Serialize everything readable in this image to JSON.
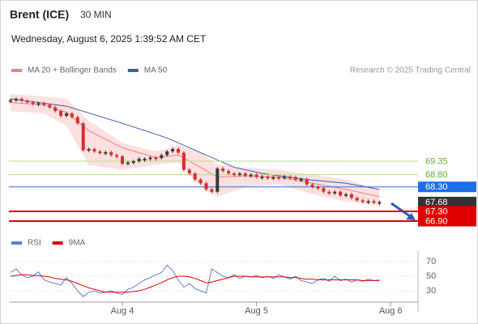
{
  "header": {
    "title": "Brent (ICE)",
    "interval": "30 MIN",
    "timestamp": "Wednesday, August 6, 2025 1:39:52 AM CET",
    "credit": "Research © 2025 Trading Central"
  },
  "chart_data": [
    {
      "type": "candlestick",
      "x": [
        -20,
        -19,
        -18,
        -17,
        -16,
        -15,
        -14,
        -13,
        -12,
        -11,
        -10,
        -9,
        -8,
        -7,
        -6,
        -5,
        -4,
        -3,
        -2,
        -1,
        0,
        1,
        2,
        3,
        4,
        5,
        6,
        7,
        8,
        9,
        10,
        11,
        12,
        13,
        14,
        15,
        16,
        17,
        18,
        19,
        20,
        21,
        22,
        23,
        24,
        25,
        26,
        27,
        28,
        29,
        30,
        31,
        32,
        33,
        34,
        35,
        36,
        37,
        38,
        39,
        40,
        41,
        42,
        43,
        44,
        45,
        46
      ],
      "close": [
        71.85,
        71.9,
        71.82,
        71.75,
        71.7,
        71.72,
        71.65,
        71.55,
        71.4,
        71.2,
        71.3,
        71.15,
        70.9,
        69.8,
        69.85,
        69.75,
        69.7,
        69.72,
        69.6,
        69.55,
        69.25,
        69.3,
        69.35,
        69.45,
        69.45,
        69.5,
        69.48,
        69.6,
        69.75,
        69.85,
        69.7,
        69.0,
        68.85,
        68.6,
        68.45,
        68.2,
        68.1,
        69.05,
        68.95,
        68.85,
        68.8,
        68.85,
        68.75,
        68.8,
        68.7,
        68.72,
        68.68,
        68.7,
        68.65,
        68.72,
        68.7,
        68.6,
        68.62,
        68.4,
        68.3,
        68.25,
        68.1,
        68.05,
        68.1,
        67.95,
        68.0,
        67.85,
        67.75,
        67.7,
        67.72,
        67.65,
        67.68
      ],
      "up_color": "#3a3a3a",
      "down_color": "#d32f2f",
      "overlays": [
        {
          "name": "MA 20 + Bollinger Bands",
          "color": "#f08080",
          "band_color": "#fde0e0",
          "x": [
            -20,
            -14,
            -10,
            -6,
            0,
            6,
            10,
            14,
            17,
            22,
            28,
            34,
            40,
            46
          ],
          "values": [
            71.75,
            71.65,
            71.35,
            70.6,
            69.9,
            69.5,
            69.6,
            69.1,
            68.7,
            68.75,
            68.7,
            68.45,
            68.2,
            67.9
          ],
          "upper": [
            72.1,
            72.0,
            71.9,
            71.0,
            70.1,
            69.75,
            70.0,
            69.7,
            69.2,
            69.1,
            69.0,
            68.8,
            68.6,
            68.2
          ],
          "lower": [
            71.4,
            71.3,
            70.8,
            69.2,
            69.0,
            69.2,
            69.3,
            68.3,
            67.9,
            68.3,
            68.4,
            68.0,
            67.7,
            67.55
          ]
        },
        {
          "name": "MA 50",
          "color": "#3a5da8",
          "x": [
            -20,
            -10,
            0,
            8,
            14,
            20,
            25,
            33,
            40,
            46
          ],
          "values": [
            71.9,
            71.6,
            70.9,
            70.3,
            69.7,
            69.1,
            68.85,
            68.6,
            68.45,
            68.2
          ]
        }
      ],
      "levels": [
        {
          "value": 69.35,
          "color": "#6aa832",
          "line_color": "#b9dc93",
          "box": false,
          "line": true
        },
        {
          "value": {
            "value": 68.8,
            "label": "68.80"
          },
          "color": "#6aa832",
          "line_color": "#b9dc93",
          "box": false,
          "line": true
        },
        {
          "value": {
            "value": 68.3,
            "label": "68.30"
          },
          "color": "#1e6ee8",
          "line_color": "#3a6fd8",
          "box": true,
          "line": true
        },
        {
          "value": 67.68,
          "color": "#333333",
          "line_color": "#333333",
          "box": true,
          "line": false
        },
        {
          "value": {
            "value": 67.3,
            "label": "67.30"
          },
          "color": "#e00000",
          "line_color": "#e00000",
          "box": true,
          "line": true
        },
        {
          "value": {
            "value": 66.9,
            "label": "66.90"
          },
          "color": "#e00000",
          "line_color": "#e00000",
          "box": true,
          "line": true
        }
      ],
      "xlim": [
        -20,
        52.9
      ],
      "ylim": [
        66.47,
        72.43
      ]
    },
    {
      "type": "line",
      "x": [
        -20,
        -19,
        -18,
        -17,
        -16,
        -15,
        -14,
        -13,
        -12,
        -11,
        -10,
        -9,
        -8,
        -7,
        -6,
        -5,
        -4,
        -3,
        -2,
        -1,
        0,
        1,
        2,
        3,
        4,
        5,
        6,
        7,
        8,
        9,
        10,
        11,
        12,
        13,
        14,
        15,
        16,
        17,
        18,
        19,
        20,
        21,
        22,
        23,
        24,
        25,
        26,
        27,
        28,
        29,
        30,
        31,
        32,
        33,
        34,
        35,
        36,
        37,
        38,
        39,
        40,
        41,
        42,
        43,
        44,
        45,
        46
      ],
      "series": [
        {
          "name": "RSI",
          "color": "#5b7fd6",
          "values": [
            55,
            60,
            52,
            48,
            50,
            56,
            45,
            42,
            40,
            38,
            48,
            40,
            30,
            22,
            28,
            30,
            27,
            28,
            30,
            27,
            25,
            32,
            35,
            40,
            45,
            48,
            52,
            55,
            65,
            58,
            45,
            35,
            40,
            33,
            30,
            27,
            60,
            55,
            50,
            48,
            52,
            47,
            50,
            49,
            51,
            48,
            50,
            47,
            52,
            49,
            46,
            50,
            44,
            42,
            40,
            45,
            47,
            43,
            50,
            44,
            46,
            42,
            45,
            43,
            46,
            44,
            45
          ]
        },
        {
          "name": "9MA",
          "color": "#e00000",
          "values": [
            50,
            51,
            52,
            52,
            51,
            51,
            50,
            49,
            47,
            46,
            45,
            43,
            40,
            37,
            34,
            32,
            30,
            28,
            28,
            28,
            28,
            28,
            29,
            30,
            32,
            35,
            38,
            41,
            45,
            48,
            50,
            50,
            49,
            47,
            44,
            41,
            42,
            44,
            46,
            48,
            50,
            50,
            50,
            49,
            49,
            49,
            49,
            49,
            49,
            49,
            48,
            48,
            47,
            46,
            46,
            45,
            45,
            45,
            45,
            45,
            45,
            45,
            45,
            44,
            44,
            44,
            44
          ]
        }
      ],
      "xlim": [
        -20,
        52.9
      ],
      "ylim": [
        15,
        85
      ],
      "yticks": [
        30,
        50,
        70
      ],
      "xticks": [
        {
          "value": 0,
          "label": "Aug 4"
        },
        {
          "value": 24,
          "label": "Aug 5"
        },
        {
          "value": 48,
          "label": "Aug 6"
        }
      ],
      "grid": true
    }
  ]
}
